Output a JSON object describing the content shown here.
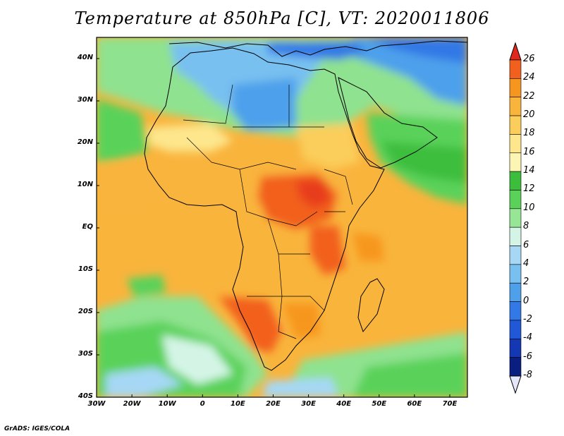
{
  "title": "Temperature at 850hPa [C], VT: 2020011806",
  "credit": "GrADS: IGES/COLA",
  "map": {
    "lon_range": [
      -30,
      75
    ],
    "lat_range": [
      -40,
      45
    ],
    "lat_ticks": [
      {
        "value": 40,
        "label": "40N"
      },
      {
        "value": 30,
        "label": "30N"
      },
      {
        "value": 20,
        "label": "20N"
      },
      {
        "value": 10,
        "label": "10N"
      },
      {
        "value": 0,
        "label": "EQ"
      },
      {
        "value": -10,
        "label": "10S"
      },
      {
        "value": -20,
        "label": "20S"
      },
      {
        "value": -30,
        "label": "30S"
      },
      {
        "value": -40,
        "label": "40S"
      }
    ],
    "lon_ticks": [
      {
        "value": -30,
        "label": "30W"
      },
      {
        "value": -20,
        "label": "20W"
      },
      {
        "value": -10,
        "label": "10W"
      },
      {
        "value": 0,
        "label": "0"
      },
      {
        "value": 10,
        "label": "10E"
      },
      {
        "value": 20,
        "label": "20E"
      },
      {
        "value": 30,
        "label": "30E"
      },
      {
        "value": 40,
        "label": "40E"
      },
      {
        "value": 50,
        "label": "50E"
      },
      {
        "value": 60,
        "label": "60E"
      },
      {
        "value": 70,
        "label": "70E"
      }
    ]
  },
  "colorbar": {
    "levels": [
      {
        "label": "26",
        "color": "#e83c1e"
      },
      {
        "label": "24",
        "color": "#f2601e"
      },
      {
        "label": "22",
        "color": "#f7961e"
      },
      {
        "label": "20",
        "color": "#f9b43c"
      },
      {
        "label": "18",
        "color": "#fbcd5a"
      },
      {
        "label": "16",
        "color": "#fde68c"
      },
      {
        "label": "14",
        "color": "#fcf5b4"
      },
      {
        "label": "12",
        "color": "#3cbe3c"
      },
      {
        "label": "10",
        "color": "#5ad25a"
      },
      {
        "label": "8",
        "color": "#96e696"
      },
      {
        "label": "6",
        "color": "#d4f5e6"
      },
      {
        "label": "4",
        "color": "#a6d8f5"
      },
      {
        "label": "2",
        "color": "#78c0f0"
      },
      {
        "label": "0",
        "color": "#4ea0eb"
      },
      {
        "label": "-2",
        "color": "#3278e6"
      },
      {
        "label": "-4",
        "color": "#2058d8"
      },
      {
        "label": "-6",
        "color": "#1438b4"
      },
      {
        "label": "-8",
        "color": "#0a1e82"
      }
    ],
    "top_triangle_color": "#e0281e",
    "bottom_triangle_color": "#e6e6fa"
  },
  "field_colors": {
    "cold_blue": "#4e8ee8",
    "sea_green": "#4ccc4c",
    "light_green": "#8fe28f",
    "warm_orange": "#f6a53a",
    "hot_orange": "#f07a24",
    "coastline": "#000000"
  }
}
